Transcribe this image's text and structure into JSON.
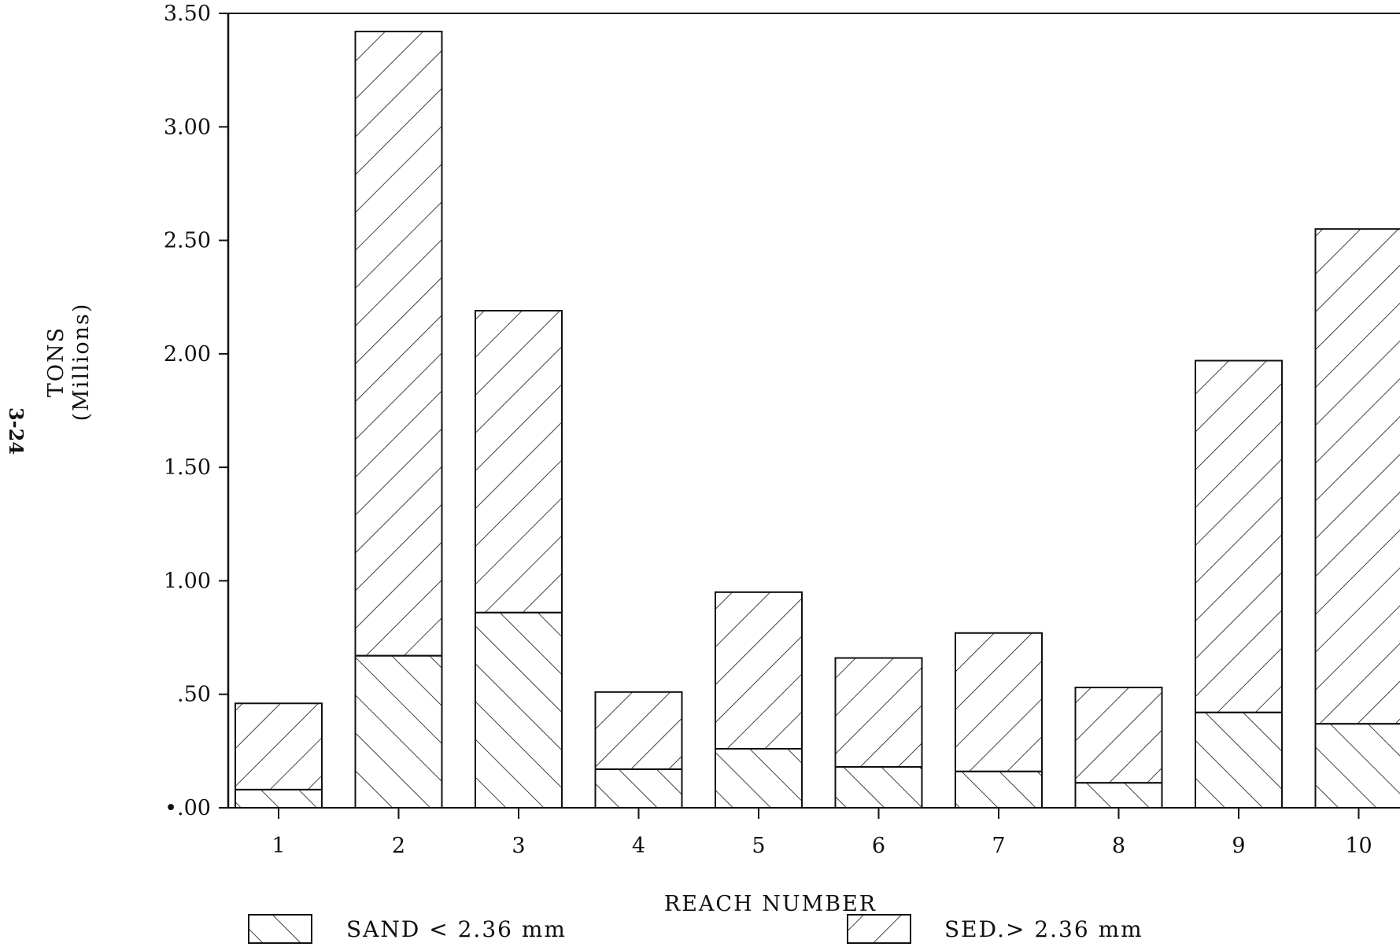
{
  "page_number": "3-24",
  "chart_data": {
    "type": "bar",
    "stacked": true,
    "title": "",
    "xlabel": "REACH NUMBER",
    "ylabel": "TONS",
    "ylabel_sub": "(Millions)",
    "ylim": [
      0,
      3.5
    ],
    "yticks": [
      "•.00",
      ".50",
      "1.00",
      "1.50",
      "2.00",
      "2.50",
      "3.00",
      "3.50"
    ],
    "categories": [
      "1",
      "2",
      "3",
      "4",
      "5",
      "6",
      "7",
      "8",
      "9",
      "10"
    ],
    "grid": false,
    "legend_position": "bottom",
    "series": [
      {
        "name": "SAND < 2.36 mm",
        "pattern": "forward-hatch",
        "values": [
          0.08,
          0.67,
          0.86,
          0.17,
          0.26,
          0.18,
          0.16,
          0.11,
          0.42,
          0.37
        ]
      },
      {
        "name": "SED.> 2.36 mm",
        "pattern": "back-hatch",
        "values": [
          0.38,
          2.75,
          1.33,
          0.34,
          0.69,
          0.48,
          0.61,
          0.42,
          1.55,
          2.18
        ]
      }
    ],
    "colors": {
      "ink": "#111111",
      "background": "#ffffff"
    }
  }
}
